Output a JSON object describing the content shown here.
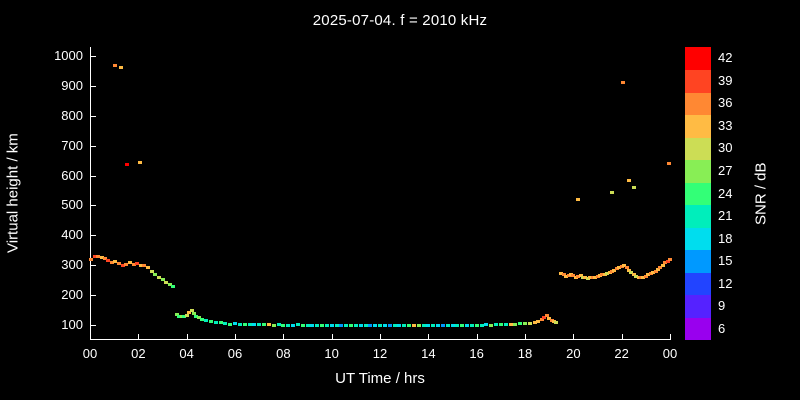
{
  "chart_data": {
    "type": "scatter",
    "title": "2025-07-04. f = 2010 kHz",
    "xlabel": "UT Time / hrs",
    "ylabel": "Virtual height / km",
    "xlim": [
      0,
      24
    ],
    "ylim": [
      50,
      1030
    ],
    "grid": false,
    "background": "#000000",
    "x_tick_values": [
      0,
      2,
      4,
      6,
      8,
      10,
      12,
      14,
      16,
      18,
      20,
      22,
      24
    ],
    "x_tick_labels": [
      "00",
      "02",
      "04",
      "06",
      "08",
      "10",
      "12",
      "14",
      "16",
      "18",
      "20",
      "22",
      "00"
    ],
    "y_tick_values": [
      100,
      200,
      300,
      400,
      500,
      600,
      700,
      800,
      900,
      1000
    ],
    "colorbar": {
      "label": "SNR / dB",
      "tick_values": [
        6,
        9,
        12,
        15,
        18,
        21,
        24,
        27,
        30,
        33,
        36,
        39,
        42
      ],
      "range": [
        4.5,
        43.5
      ],
      "colors": {
        "6": "#9900ee",
        "9": "#5522ff",
        "12": "#2244ff",
        "15": "#0099ff",
        "18": "#00ddee",
        "21": "#00eebb",
        "24": "#33ff77",
        "27": "#88ee55",
        "30": "#ccdd55",
        "33": "#ffbb44",
        "36": "#ff8833",
        "39": "#ff4422",
        "42": "#ff0000"
      }
    },
    "points": [
      [
        0.05,
        320,
        36
      ],
      [
        0.2,
        328,
        39
      ],
      [
        0.35,
        330,
        36
      ],
      [
        0.5,
        326,
        33
      ],
      [
        0.6,
        322,
        36
      ],
      [
        0.75,
        315,
        39
      ],
      [
        0.9,
        310,
        36
      ],
      [
        1.05,
        312,
        33
      ],
      [
        1.2,
        306,
        36
      ],
      [
        1.35,
        300,
        39
      ],
      [
        1.5,
        304,
        36
      ],
      [
        1.65,
        310,
        33
      ],
      [
        1.8,
        302,
        36
      ],
      [
        1.95,
        306,
        39
      ],
      [
        2.1,
        298,
        33
      ],
      [
        2.25,
        300,
        36
      ],
      [
        2.4,
        292,
        33
      ],
      [
        2.55,
        280,
        30
      ],
      [
        2.7,
        268,
        27
      ],
      [
        2.85,
        258,
        30
      ],
      [
        3.0,
        252,
        27
      ],
      [
        3.15,
        243,
        30
      ],
      [
        3.3,
        234,
        27
      ],
      [
        3.45,
        228,
        24
      ],
      [
        1.05,
        968,
        36
      ],
      [
        1.3,
        962,
        33
      ],
      [
        1.55,
        636,
        42
      ],
      [
        2.05,
        645,
        33
      ],
      [
        3.6,
        134,
        27
      ],
      [
        3.7,
        128,
        24
      ],
      [
        3.8,
        130,
        27
      ],
      [
        3.9,
        127,
        24
      ],
      [
        4.0,
        132,
        30
      ],
      [
        4.1,
        141,
        33
      ],
      [
        4.2,
        147,
        30
      ],
      [
        4.3,
        138,
        27
      ],
      [
        4.4,
        130,
        24
      ],
      [
        4.5,
        124,
        27
      ],
      [
        4.65,
        120,
        24
      ],
      [
        4.8,
        116,
        21
      ],
      [
        5.0,
        113,
        24
      ],
      [
        5.2,
        110,
        21
      ],
      [
        5.4,
        108,
        24
      ],
      [
        5.6,
        105,
        21
      ],
      [
        5.8,
        103,
        24
      ],
      [
        6.0,
        104,
        18
      ],
      [
        6.2,
        102,
        21
      ],
      [
        6.4,
        103,
        24
      ],
      [
        6.6,
        101,
        21
      ],
      [
        6.8,
        102,
        18
      ],
      [
        7.0,
        103,
        21
      ],
      [
        7.2,
        101,
        24
      ],
      [
        7.4,
        102,
        33
      ],
      [
        7.6,
        100,
        27
      ],
      [
        7.8,
        101,
        21
      ],
      [
        8.0,
        100,
        24
      ],
      [
        8.2,
        99,
        21
      ],
      [
        8.4,
        100,
        18
      ],
      [
        8.6,
        101,
        21
      ],
      [
        8.8,
        99,
        24
      ],
      [
        9.0,
        100,
        21
      ],
      [
        9.2,
        98,
        18
      ],
      [
        9.4,
        99,
        21
      ],
      [
        9.6,
        100,
        24
      ],
      [
        9.8,
        99,
        21
      ],
      [
        10.0,
        100,
        18
      ],
      [
        10.2,
        98,
        21
      ],
      [
        10.4,
        99,
        15
      ],
      [
        10.6,
        100,
        21
      ],
      [
        10.8,
        98,
        24
      ],
      [
        11.0,
        99,
        21
      ],
      [
        11.2,
        97,
        18
      ],
      [
        11.4,
        98,
        21
      ],
      [
        11.6,
        99,
        15
      ],
      [
        11.8,
        98,
        18
      ],
      [
        12.0,
        97,
        21
      ],
      [
        12.2,
        98,
        18
      ],
      [
        12.4,
        97,
        15
      ],
      [
        12.6,
        98,
        21
      ],
      [
        12.8,
        97,
        18
      ],
      [
        13.0,
        98,
        21
      ],
      [
        13.2,
        97,
        24
      ],
      [
        13.4,
        98,
        33
      ],
      [
        13.6,
        99,
        27
      ],
      [
        13.8,
        98,
        21
      ],
      [
        14.0,
        97,
        18
      ],
      [
        14.2,
        98,
        21
      ],
      [
        14.4,
        97,
        18
      ],
      [
        14.6,
        98,
        15
      ],
      [
        14.8,
        99,
        21
      ],
      [
        15.0,
        98,
        18
      ],
      [
        15.2,
        99,
        21
      ],
      [
        15.4,
        98,
        24
      ],
      [
        15.6,
        99,
        18
      ],
      [
        15.8,
        100,
        21
      ],
      [
        16.0,
        99,
        24
      ],
      [
        16.2,
        100,
        21
      ],
      [
        16.4,
        101,
        18
      ],
      [
        16.6,
        100,
        27
      ],
      [
        16.8,
        101,
        21
      ],
      [
        17.0,
        102,
        24
      ],
      [
        17.2,
        101,
        21
      ],
      [
        17.4,
        102,
        33
      ],
      [
        17.6,
        103,
        27
      ],
      [
        17.8,
        104,
        24
      ],
      [
        18.0,
        105,
        27
      ],
      [
        18.2,
        106,
        30
      ],
      [
        18.4,
        108,
        33
      ],
      [
        18.55,
        112,
        33
      ],
      [
        18.7,
        118,
        36
      ],
      [
        18.8,
        126,
        39
      ],
      [
        18.9,
        131,
        36
      ],
      [
        19.0,
        123,
        33
      ],
      [
        19.1,
        116,
        36
      ],
      [
        19.2,
        112,
        33
      ],
      [
        19.3,
        110,
        30
      ],
      [
        19.5,
        272,
        33
      ],
      [
        19.6,
        268,
        36
      ],
      [
        19.7,
        264,
        33
      ],
      [
        19.8,
        266,
        36
      ],
      [
        19.9,
        270,
        33
      ],
      [
        20.0,
        265,
        36
      ],
      [
        20.1,
        260,
        33
      ],
      [
        20.2,
        262,
        36
      ],
      [
        20.3,
        265,
        33
      ],
      [
        20.4,
        260,
        30
      ],
      [
        20.5,
        258,
        33
      ],
      [
        20.6,
        256,
        30
      ],
      [
        20.7,
        258,
        33
      ],
      [
        20.8,
        260,
        36
      ],
      [
        20.9,
        258,
        33
      ],
      [
        21.0,
        262,
        36
      ],
      [
        21.1,
        266,
        33
      ],
      [
        21.2,
        270,
        36
      ],
      [
        21.3,
        268,
        33
      ],
      [
        21.4,
        272,
        30
      ],
      [
        21.5,
        276,
        33
      ],
      [
        21.6,
        280,
        36
      ],
      [
        21.7,
        284,
        33
      ],
      [
        21.8,
        288,
        36
      ],
      [
        21.9,
        292,
        33
      ],
      [
        22.0,
        296,
        36
      ],
      [
        22.1,
        298,
        33
      ],
      [
        22.2,
        292,
        36
      ],
      [
        22.3,
        284,
        33
      ],
      [
        22.4,
        276,
        30
      ],
      [
        22.5,
        270,
        33
      ],
      [
        22.6,
        264,
        30
      ],
      [
        22.7,
        260,
        33
      ],
      [
        22.8,
        258,
        36
      ],
      [
        22.9,
        260,
        33
      ],
      [
        23.0,
        264,
        36
      ],
      [
        23.1,
        268,
        33
      ],
      [
        23.2,
        272,
        36
      ],
      [
        23.3,
        276,
        33
      ],
      [
        23.4,
        280,
        36
      ],
      [
        23.5,
        286,
        33
      ],
      [
        23.6,
        292,
        36
      ],
      [
        23.7,
        300,
        33
      ],
      [
        23.8,
        308,
        36
      ],
      [
        23.9,
        314,
        39
      ],
      [
        24.0,
        320,
        36
      ],
      [
        20.2,
        520,
        33
      ],
      [
        21.6,
        545,
        30
      ],
      [
        22.05,
        910,
        36
      ],
      [
        22.3,
        585,
        33
      ],
      [
        22.5,
        560,
        30
      ],
      [
        23.95,
        640,
        36
      ]
    ]
  }
}
